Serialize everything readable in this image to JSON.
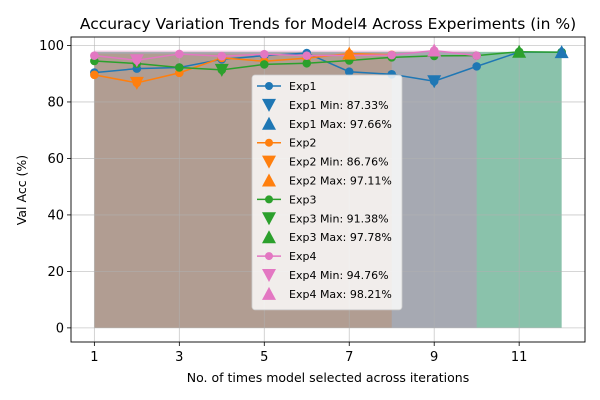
{
  "chart_data": {
    "type": "line",
    "title": "Accuracy Variation Trends for Model4 Across Experiments (in %)",
    "xlabel": "No. of times model selected across iterations",
    "ylabel": "Val Acc (%)",
    "xlim": [
      0.45,
      12.55
    ],
    "ylim": [
      -5,
      103
    ],
    "xticks": [
      1,
      3,
      5,
      7,
      9,
      11
    ],
    "yticks": [
      0,
      20,
      40,
      60,
      80,
      100
    ],
    "grid": true,
    "legend_position": "center",
    "series": [
      {
        "name": "Exp1",
        "color": "#1f77b4",
        "x": [
          1,
          2,
          3,
          4,
          5,
          6,
          7,
          8,
          9,
          10,
          11,
          12
        ],
        "y": [
          90.4,
          91.8,
          92.2,
          95.1,
          96.4,
          97.3,
          90.7,
          89.8,
          87.33,
          92.6,
          97.66,
          97.66
        ],
        "min": {
          "x": 9,
          "y": 87.33,
          "label": "Exp1 Min: 87.33%"
        },
        "max": {
          "x": 12,
          "y": 97.66,
          "label": "Exp1 Max: 97.66%"
        },
        "fill_color": "#1f77b4"
      },
      {
        "name": "Exp2",
        "color": "#ff7f0e",
        "x": [
          1,
          2,
          3,
          4,
          5,
          6,
          7,
          8
        ],
        "y": [
          89.6,
          86.76,
          90.3,
          95.6,
          94.4,
          95.5,
          97.11,
          96.7
        ],
        "min": {
          "x": 2,
          "y": 86.76,
          "label": "Exp2 Min: 86.76%"
        },
        "max": {
          "x": 7,
          "y": 97.11,
          "label": "Exp2 Max: 97.11%"
        },
        "fill_color": "#ff7f0e"
      },
      {
        "name": "Exp3",
        "color": "#2ca02c",
        "x": [
          1,
          2,
          3,
          4,
          5,
          6,
          7,
          8,
          9,
          10,
          11,
          12
        ],
        "y": [
          94.5,
          93.6,
          92.2,
          91.38,
          93.3,
          93.7,
          94.7,
          95.8,
          96.3,
          96.4,
          97.78,
          97.6
        ],
        "min": {
          "x": 4,
          "y": 91.38,
          "label": "Exp3 Min: 91.38%"
        },
        "max": {
          "x": 11,
          "y": 97.78,
          "label": "Exp3 Max: 97.78%"
        },
        "fill_color": "#2ca02c"
      },
      {
        "name": "Exp4",
        "color": "#e377c2",
        "x": [
          1,
          2,
          3,
          4,
          5,
          6,
          7,
          8,
          9,
          10
        ],
        "y": [
          96.4,
          94.76,
          97.0,
          96.2,
          96.9,
          96.4,
          96.5,
          96.6,
          98.21,
          96.4
        ],
        "min": {
          "x": 2,
          "y": 94.76,
          "label": "Exp4 Min: 94.76%"
        },
        "max": {
          "x": 9,
          "y": 98.21,
          "label": "Exp4 Max: 98.21%"
        },
        "fill_color": "#e377c2"
      }
    ]
  }
}
